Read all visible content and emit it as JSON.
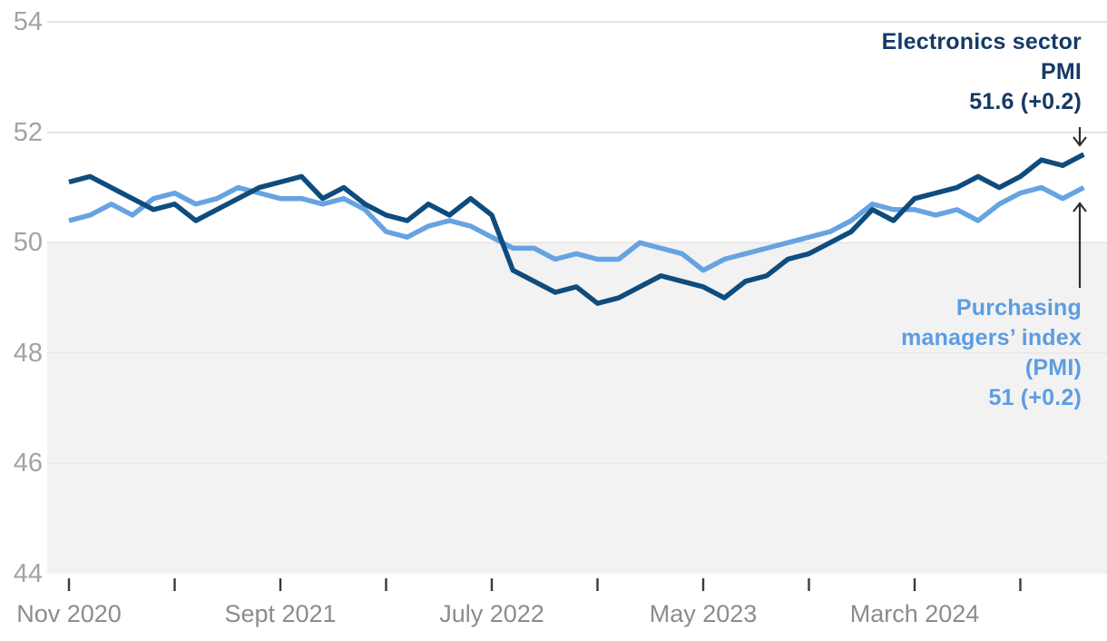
{
  "chart_data": {
    "type": "line",
    "title": "",
    "xlabel": "",
    "ylabel": "",
    "ylim": [
      44,
      54
    ],
    "grid": "horizontal",
    "legend_position": "annotations-right",
    "shaded_region": {
      "condition": "below 50",
      "color": "#f2f2f2"
    },
    "yticks": [
      "54",
      "52",
      "50",
      "48",
      "46",
      "44"
    ],
    "xtick_labels": [
      "Nov 2020",
      "Sept 2021",
      "July 2022",
      "May 2023",
      "March 2024"
    ],
    "x": [
      "Nov 2020",
      "Dec 2020",
      "Jan 2021",
      "Feb 2021",
      "Mar 2021",
      "Apr 2021",
      "May 2021",
      "Jun 2021",
      "Jul 2021",
      "Aug 2021",
      "Sep 2021",
      "Oct 2021",
      "Nov 2021",
      "Dec 2021",
      "Jan 2022",
      "Feb 2022",
      "Mar 2022",
      "Apr 2022",
      "May 2022",
      "Jun 2022",
      "Jul 2022",
      "Aug 2022",
      "Sep 2022",
      "Oct 2022",
      "Nov 2022",
      "Dec 2022",
      "Jan 2023",
      "Feb 2023",
      "Mar 2023",
      "Apr 2023",
      "May 2023",
      "Jun 2023",
      "Jul 2023",
      "Aug 2023",
      "Sep 2023",
      "Oct 2023",
      "Nov 2023",
      "Dec 2023",
      "Jan 2024",
      "Feb 2024",
      "Mar 2024",
      "Apr 2024",
      "May 2024",
      "Jun 2024",
      "Jul 2024",
      "Aug 2024",
      "Sep 2024",
      "Oct 2024",
      "Nov 2024"
    ],
    "series": [
      {
        "name": "Electronics sector PMI",
        "color": "#0f4c7e",
        "latest_value": "51.6",
        "latest_change": "+0.2",
        "values": [
          51.1,
          51.2,
          51.0,
          50.8,
          50.6,
          50.7,
          50.4,
          50.6,
          50.8,
          51.0,
          51.1,
          51.2,
          50.8,
          51.0,
          50.7,
          50.5,
          50.4,
          50.7,
          50.5,
          50.8,
          50.5,
          49.5,
          49.3,
          49.1,
          49.2,
          48.9,
          49.0,
          49.2,
          49.4,
          49.3,
          49.2,
          49.0,
          49.3,
          49.4,
          49.7,
          49.8,
          50.0,
          50.2,
          50.6,
          50.4,
          50.8,
          50.9,
          51.0,
          51.2,
          51.0,
          51.2,
          51.5,
          51.4,
          51.6
        ]
      },
      {
        "name": "Purchasing managers’ index (PMI)",
        "color": "#67a3e1",
        "latest_value": "51",
        "latest_change": "+0.2",
        "values": [
          50.4,
          50.5,
          50.7,
          50.5,
          50.8,
          50.9,
          50.7,
          50.8,
          51.0,
          50.9,
          50.8,
          50.8,
          50.7,
          50.8,
          50.6,
          50.2,
          50.1,
          50.3,
          50.4,
          50.3,
          50.1,
          49.9,
          49.9,
          49.7,
          49.8,
          49.7,
          49.7,
          50.0,
          49.9,
          49.8,
          49.5,
          49.7,
          49.8,
          49.9,
          50.0,
          50.1,
          50.2,
          50.4,
          50.7,
          50.6,
          50.6,
          50.5,
          50.6,
          50.4,
          50.7,
          50.9,
          51.0,
          50.8,
          51.0
        ]
      }
    ],
    "annotations": {
      "electronics": {
        "color": "#153a66",
        "line1": "Electronics sector",
        "line2": "PMI",
        "line3": "51.6 (+0.2)"
      },
      "pmi": {
        "color": "#5c9de0",
        "line1": "Purchasing",
        "line2": "managers’ index",
        "line3": "(PMI)",
        "line4": "51 (+0.2)"
      }
    }
  }
}
